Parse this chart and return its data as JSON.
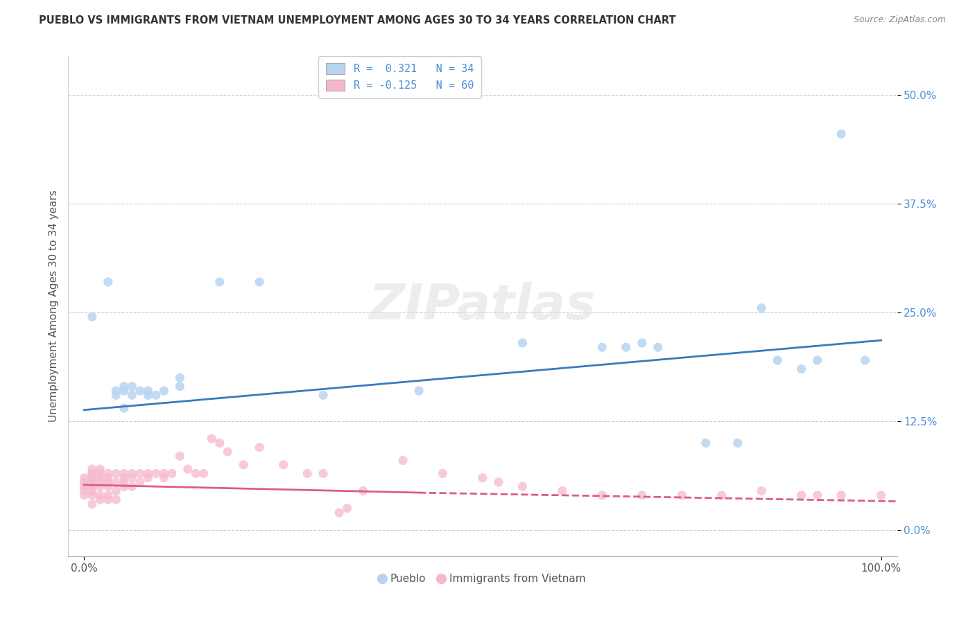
{
  "title": "PUEBLO VS IMMIGRANTS FROM VIETNAM UNEMPLOYMENT AMONG AGES 30 TO 34 YEARS CORRELATION CHART",
  "source": "Source: ZipAtlas.com",
  "ylabel": "Unemployment Among Ages 30 to 34 years",
  "xlim": [
    -0.02,
    1.02
  ],
  "ylim": [
    -0.03,
    0.545
  ],
  "yticks": [
    0.0,
    0.125,
    0.25,
    0.375,
    0.5
  ],
  "ytick_labels": [
    "0.0%",
    "12.5%",
    "25.0%",
    "37.5%",
    "50.0%"
  ],
  "xticks": [
    0.0,
    1.0
  ],
  "xtick_labels": [
    "0.0%",
    "100.0%"
  ],
  "pueblo_color": "#b8d4f0",
  "immigrant_color": "#f5b8d0",
  "trend_blue": "#3a7abf",
  "trend_pink": "#d9607a",
  "pueblo_points": [
    [
      0.01,
      0.245
    ],
    [
      0.03,
      0.285
    ],
    [
      0.04,
      0.155
    ],
    [
      0.04,
      0.16
    ],
    [
      0.05,
      0.14
    ],
    [
      0.05,
      0.16
    ],
    [
      0.05,
      0.165
    ],
    [
      0.06,
      0.155
    ],
    [
      0.06,
      0.165
    ],
    [
      0.07,
      0.16
    ],
    [
      0.08,
      0.155
    ],
    [
      0.08,
      0.16
    ],
    [
      0.09,
      0.155
    ],
    [
      0.1,
      0.16
    ],
    [
      0.12,
      0.165
    ],
    [
      0.12,
      0.175
    ],
    [
      0.17,
      0.285
    ],
    [
      0.22,
      0.285
    ],
    [
      0.3,
      0.155
    ],
    [
      0.42,
      0.16
    ],
    [
      0.55,
      0.215
    ],
    [
      0.65,
      0.21
    ],
    [
      0.68,
      0.21
    ],
    [
      0.7,
      0.215
    ],
    [
      0.72,
      0.21
    ],
    [
      0.78,
      0.1
    ],
    [
      0.82,
      0.1
    ],
    [
      0.85,
      0.255
    ],
    [
      0.87,
      0.195
    ],
    [
      0.9,
      0.185
    ],
    [
      0.92,
      0.195
    ],
    [
      0.95,
      0.455
    ],
    [
      0.98,
      0.195
    ]
  ],
  "immigrant_points": [
    [
      0.0,
      0.055
    ],
    [
      0.0,
      0.06
    ],
    [
      0.0,
      0.05
    ],
    [
      0.0,
      0.04
    ],
    [
      0.0,
      0.045
    ],
    [
      0.01,
      0.065
    ],
    [
      0.01,
      0.06
    ],
    [
      0.01,
      0.055
    ],
    [
      0.01,
      0.06
    ],
    [
      0.01,
      0.065
    ],
    [
      0.01,
      0.07
    ],
    [
      0.01,
      0.04
    ],
    [
      0.01,
      0.03
    ],
    [
      0.01,
      0.05
    ],
    [
      0.01,
      0.045
    ],
    [
      0.02,
      0.07
    ],
    [
      0.02,
      0.065
    ],
    [
      0.02,
      0.06
    ],
    [
      0.02,
      0.055
    ],
    [
      0.02,
      0.05
    ],
    [
      0.02,
      0.04
    ],
    [
      0.02,
      0.035
    ],
    [
      0.03,
      0.065
    ],
    [
      0.03,
      0.06
    ],
    [
      0.03,
      0.055
    ],
    [
      0.03,
      0.05
    ],
    [
      0.03,
      0.04
    ],
    [
      0.03,
      0.035
    ],
    [
      0.04,
      0.065
    ],
    [
      0.04,
      0.055
    ],
    [
      0.04,
      0.045
    ],
    [
      0.04,
      0.035
    ],
    [
      0.05,
      0.065
    ],
    [
      0.05,
      0.06
    ],
    [
      0.05,
      0.055
    ],
    [
      0.05,
      0.05
    ],
    [
      0.06,
      0.065
    ],
    [
      0.06,
      0.06
    ],
    [
      0.06,
      0.05
    ],
    [
      0.07,
      0.065
    ],
    [
      0.07,
      0.055
    ],
    [
      0.08,
      0.065
    ],
    [
      0.08,
      0.06
    ],
    [
      0.09,
      0.065
    ],
    [
      0.1,
      0.065
    ],
    [
      0.1,
      0.06
    ],
    [
      0.11,
      0.065
    ],
    [
      0.12,
      0.085
    ],
    [
      0.13,
      0.07
    ],
    [
      0.14,
      0.065
    ],
    [
      0.15,
      0.065
    ],
    [
      0.16,
      0.105
    ],
    [
      0.17,
      0.1
    ],
    [
      0.18,
      0.09
    ],
    [
      0.2,
      0.075
    ],
    [
      0.22,
      0.095
    ],
    [
      0.25,
      0.075
    ],
    [
      0.28,
      0.065
    ],
    [
      0.3,
      0.065
    ],
    [
      0.32,
      0.02
    ],
    [
      0.33,
      0.025
    ],
    [
      0.35,
      0.045
    ],
    [
      0.4,
      0.08
    ],
    [
      0.45,
      0.065
    ],
    [
      0.5,
      0.06
    ],
    [
      0.52,
      0.055
    ],
    [
      0.55,
      0.05
    ],
    [
      0.6,
      0.045
    ],
    [
      0.65,
      0.04
    ],
    [
      0.7,
      0.04
    ],
    [
      0.75,
      0.04
    ],
    [
      0.8,
      0.04
    ],
    [
      0.85,
      0.045
    ],
    [
      0.9,
      0.04
    ],
    [
      0.92,
      0.04
    ],
    [
      0.95,
      0.04
    ],
    [
      1.0,
      0.04
    ]
  ],
  "blue_trend_x0": 0.0,
  "blue_trend_y0": 0.138,
  "blue_trend_x1": 1.0,
  "blue_trend_y1": 0.218,
  "pink_trend_solid_x0": 0.0,
  "pink_trend_solid_y0": 0.052,
  "pink_trend_solid_x1": 0.42,
  "pink_trend_solid_y1": 0.043,
  "pink_trend_dash_x0": 0.42,
  "pink_trend_dash_y0": 0.043,
  "pink_trend_dash_x1": 1.02,
  "pink_trend_dash_y1": 0.033
}
